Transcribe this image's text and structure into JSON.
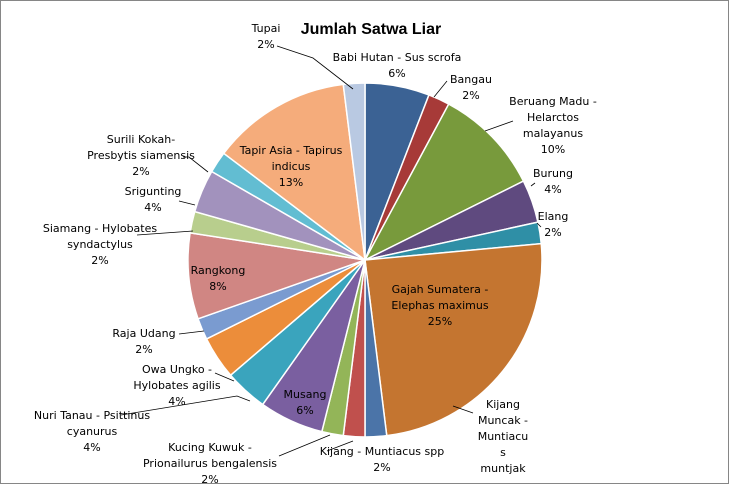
{
  "chart_data": {
    "type": "pie",
    "title": "Jumlah Satwa Liar",
    "slices": [
      {
        "lines": [
          "Babi Hutan - Sus scrofa",
          "6%"
        ],
        "value": 6,
        "color": "#3b6294"
      },
      {
        "lines": [
          "Bangau",
          "2%"
        ],
        "value": 2,
        "color": "#a73a38"
      },
      {
        "lines": [
          "Beruang Madu -",
          "Helarctos",
          "malayanus",
          "10%"
        ],
        "value": 10,
        "color": "#789a3c"
      },
      {
        "lines": [
          "Burung",
          "4%"
        ],
        "value": 4,
        "color": "#5f4a7f"
      },
      {
        "lines": [
          "Elang",
          "2%"
        ],
        "value": 2,
        "color": "#2f8fa6"
      },
      {
        "lines": [
          "Gajah Sumatera -",
          "Elephas maximus",
          "25%"
        ],
        "value": 25,
        "color": "#c47530"
      },
      {
        "lines": [
          "Kijang",
          "Muncak -",
          "Muntiacu",
          "s",
          "muntjak"
        ],
        "value": 2,
        "color": "#4b74a8"
      },
      {
        "lines": [
          "Kijang - Muntiacus spp",
          "2%"
        ],
        "value": 2,
        "color": "#c0504d"
      },
      {
        "lines": [
          "Kucing Kuwuk -",
          "Prionailurus bengalensis",
          "2%"
        ],
        "value": 2,
        "color": "#93b558"
      },
      {
        "lines": [
          "Musang",
          "6%"
        ],
        "value": 6,
        "color": "#7a5fa0"
      },
      {
        "lines": [
          "Nuri Tanau - Psittinus",
          "cyanurus",
          "4%"
        ],
        "value": 4,
        "color": "#3aa4bd"
      },
      {
        "lines": [
          "Owa Ungko -",
          "Hylobates agilis",
          "4%"
        ],
        "value": 4,
        "color": "#ec8d3a"
      },
      {
        "lines": [
          "Raja Udang",
          "2%"
        ],
        "value": 2,
        "color": "#7a9bd0"
      },
      {
        "lines": [
          "Rangkong",
          "8%"
        ],
        "value": 8,
        "color": "#d08683"
      },
      {
        "lines": [
          "Siamang - Hylobates",
          "syndactylus",
          "2%"
        ],
        "value": 2,
        "color": "#b8ce8d"
      },
      {
        "lines": [
          "Srigunting",
          "4%"
        ],
        "value": 4,
        "color": "#a292bd"
      },
      {
        "lines": [
          "Surili Kokah-",
          "Presbytis siamensis",
          "2%"
        ],
        "value": 2,
        "color": "#62bdd2"
      },
      {
        "lines": [
          "Tapir Asia - Tapirus",
          "indicus",
          "13%"
        ],
        "value": 13,
        "color": "#f5ac7b"
      },
      {
        "lines": [
          "Tupai",
          "2%"
        ],
        "value": 2,
        "color": "#b9c9e2"
      }
    ]
  }
}
